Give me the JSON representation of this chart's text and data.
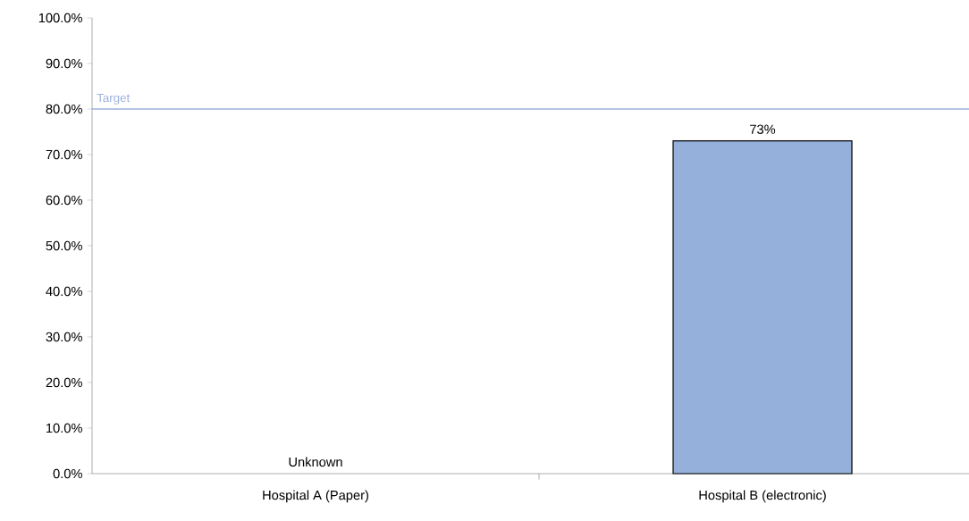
{
  "chart_data": {
    "type": "bar",
    "categories": [
      "Hospital A (Paper)",
      "Hospital B (electronic)"
    ],
    "values": [
      null,
      73
    ],
    "value_labels": [
      "Unknown",
      "73%"
    ],
    "color": "#95b1db",
    "ylim": [
      0,
      100
    ],
    "yticks": [
      {
        "value": 0,
        "label": "0.0%"
      },
      {
        "value": 10,
        "label": "10.0%"
      },
      {
        "value": 20,
        "label": "20.0%"
      },
      {
        "value": 30,
        "label": "30.0%"
      },
      {
        "value": 40,
        "label": "40.0%"
      },
      {
        "value": 50,
        "label": "50.0%"
      },
      {
        "value": 60,
        "label": "60.0%"
      },
      {
        "value": 70,
        "label": "70.0%"
      },
      {
        "value": 80,
        "label": "80.0%"
      },
      {
        "value": 90,
        "label": "90.0%"
      },
      {
        "value": 100,
        "label": "100.0%"
      }
    ],
    "ref_lines": [
      {
        "axis": "y",
        "value": 80,
        "label": "Target",
        "color": "#9bb0dc"
      }
    ],
    "grid": false
  }
}
